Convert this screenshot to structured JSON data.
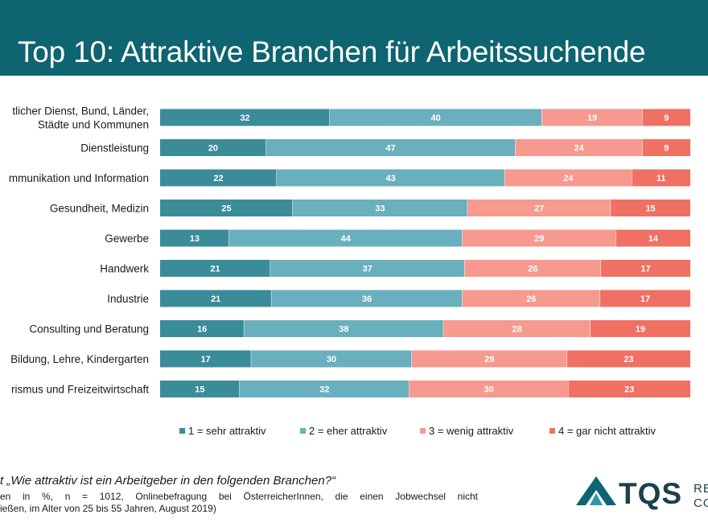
{
  "title": "Top 10: Attraktive Branchen für Arbeitssuchende",
  "colors": {
    "header": "#0e6470",
    "s1": "#3a8c99",
    "s2": "#6aafbd",
    "s3": "#f6998f",
    "s4": "#f07064"
  },
  "chart_data": {
    "type": "bar",
    "orientation": "horizontal",
    "stacked": true,
    "categories": [
      [
        "tlicher Dienst, Bund, Länder,",
        "Städte und Kommunen"
      ],
      [
        "Dienstleistung"
      ],
      [
        "mmunikation und Information"
      ],
      [
        "Gesundheit, Medizin"
      ],
      [
        "Gewerbe"
      ],
      [
        "Handwerk"
      ],
      [
        "Industrie"
      ],
      [
        "Consulting und Beratung"
      ],
      [
        "Bildung, Lehre, Kindergarten"
      ],
      [
        "rismus und Freizeitwirtschaft"
      ]
    ],
    "series": [
      {
        "name": "1 = sehr attraktiv",
        "color": "#3a8c99",
        "values": [
          32,
          20,
          22,
          25,
          13,
          21,
          21,
          16,
          17,
          15
        ]
      },
      {
        "name": "2 = eher attraktiv",
        "color": "#6aafbd",
        "values": [
          40,
          47,
          43,
          33,
          44,
          37,
          36,
          38,
          30,
          32
        ]
      },
      {
        "name": "3 = wenig attraktiv",
        "color": "#f6998f",
        "values": [
          19,
          24,
          24,
          27,
          29,
          26,
          26,
          28,
          29,
          30
        ]
      },
      {
        "name": "4 = gar nicht attraktiv",
        "color": "#f07064",
        "values": [
          9,
          9,
          11,
          15,
          14,
          17,
          17,
          19,
          23,
          23
        ]
      }
    ],
    "legend_position": "bottom",
    "grid": false
  },
  "footer": {
    "question": "t „Wie attraktiv ist ein Arbeitgeber in den folgenden Branchen?“",
    "note_line1": "en in %, n = 1012, Onlinebefragung bei ÖsterreicherInnen, die einen Jobwechsel nicht",
    "note_line2": "ießen, im Alter von 25 bis 55 Jahren, August 2019)"
  },
  "logo": {
    "text": "TQS",
    "small_line1": "RE",
    "small_line2": "CO"
  }
}
